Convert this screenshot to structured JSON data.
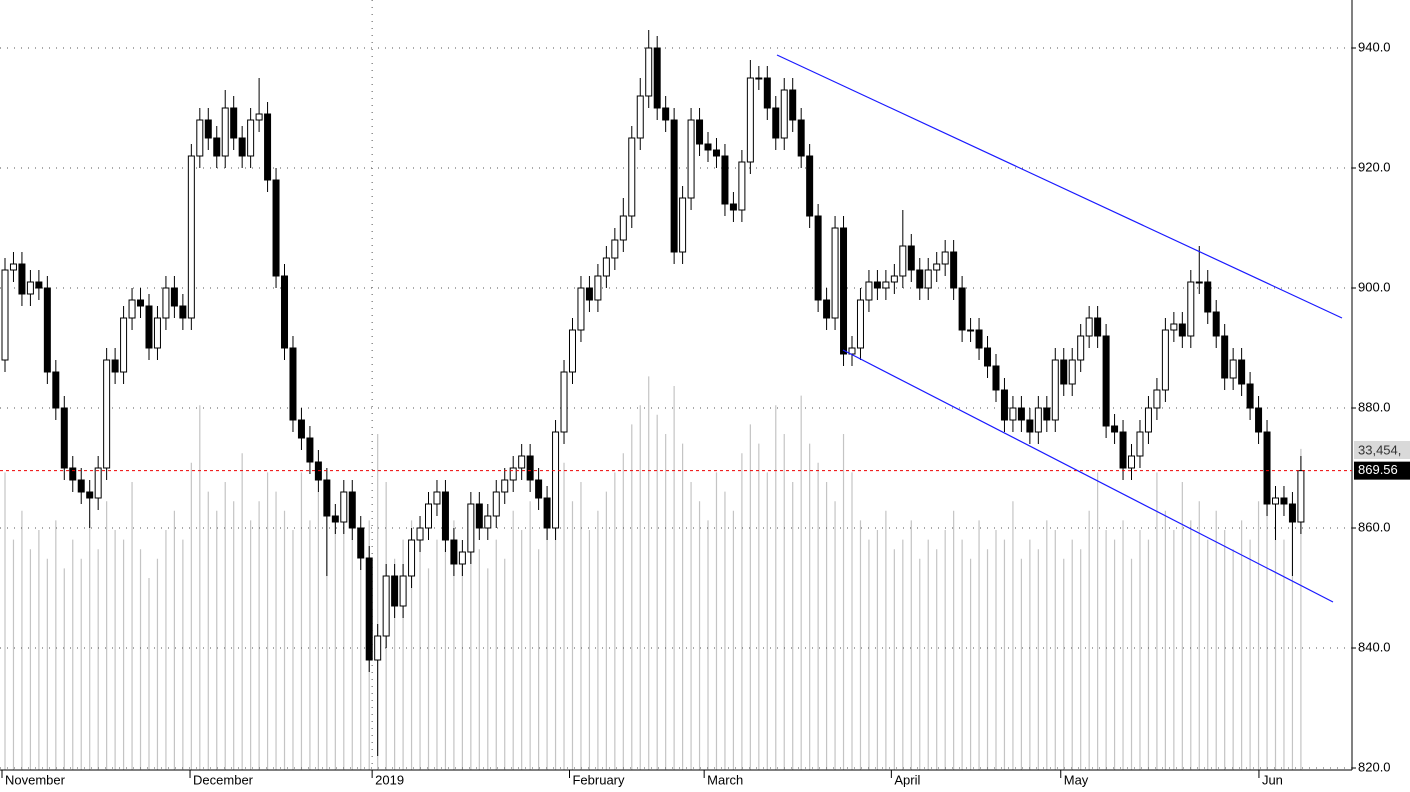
{
  "chart_data": {
    "type": "candlestick",
    "open": [
      888,
      903,
      904,
      899,
      901,
      900,
      886,
      880,
      870,
      868,
      866,
      865,
      870,
      888,
      886,
      895,
      898,
      897,
      890,
      895,
      900,
      897,
      895,
      922,
      928,
      925,
      922,
      930,
      925,
      922,
      928,
      929,
      918,
      902,
      890,
      878,
      875,
      871,
      868,
      862,
      861,
      866,
      860,
      855,
      838,
      842,
      852,
      847,
      852,
      858,
      860,
      864,
      866,
      858,
      854,
      856,
      864,
      860,
      862,
      866,
      868,
      870,
      872,
      868,
      865,
      860,
      876,
      886,
      893,
      900,
      898,
      902,
      905,
      908,
      912,
      925,
      932,
      940,
      930,
      928,
      906,
      915,
      928,
      924,
      923,
      922,
      914,
      913,
      921,
      935,
      935,
      930,
      925,
      933,
      928,
      922,
      912,
      898,
      895,
      910,
      889,
      890,
      898,
      901,
      900,
      901,
      902,
      907,
      903,
      900,
      903,
      904,
      906,
      900,
      893,
      893,
      890,
      887,
      883,
      878,
      880,
      878,
      876,
      880,
      878,
      888,
      884,
      888,
      892,
      895,
      892,
      877,
      876,
      870,
      872,
      876,
      880,
      883,
      893,
      894,
      892,
      901,
      901,
      896,
      892,
      885,
      888,
      884,
      880,
      876,
      864,
      865,
      864,
      861
    ],
    "high": [
      905,
      906,
      906,
      903,
      903,
      902,
      888,
      882,
      872,
      870,
      868,
      872,
      890,
      890,
      897,
      900,
      900,
      899,
      897,
      902,
      902,
      899,
      924,
      930,
      930,
      927,
      933,
      932,
      927,
      930,
      935,
      931,
      920,
      904,
      892,
      880,
      877,
      873,
      870,
      864,
      868,
      868,
      862,
      857,
      844,
      854,
      854,
      854,
      860,
      862,
      866,
      868,
      868,
      860,
      858,
      866,
      866,
      864,
      868,
      870,
      872,
      874,
      874,
      870,
      867,
      878,
      888,
      895,
      902,
      902,
      904,
      907,
      910,
      915,
      927,
      935,
      943,
      942,
      932,
      930,
      917,
      930,
      930,
      926,
      925,
      924,
      916,
      923,
      938,
      937,
      937,
      932,
      935,
      935,
      930,
      924,
      914,
      900,
      912,
      912,
      892,
      900,
      903,
      903,
      903,
      904,
      913,
      909,
      905,
      905,
      906,
      908,
      908,
      902,
      895,
      895,
      892,
      889,
      885,
      882,
      882,
      880,
      882,
      882,
      890,
      890,
      890,
      894,
      897,
      897,
      894,
      879,
      878,
      874,
      878,
      882,
      885,
      895,
      896,
      896,
      903,
      907,
      903,
      898,
      894,
      890,
      890,
      886,
      882,
      878,
      867,
      867,
      866,
      872
    ],
    "low": [
      886,
      901,
      897,
      897,
      898,
      884,
      878,
      868,
      866,
      864,
      860,
      863,
      868,
      884,
      884,
      893,
      895,
      888,
      888,
      893,
      895,
      893,
      893,
      920,
      923,
      920,
      920,
      923,
      920,
      920,
      926,
      916,
      900,
      888,
      876,
      873,
      869,
      866,
      852,
      859,
      859,
      858,
      853,
      836,
      822,
      840,
      845,
      845,
      850,
      856,
      858,
      862,
      856,
      852,
      852,
      854,
      858,
      858,
      860,
      864,
      866,
      868,
      866,
      863,
      858,
      858,
      874,
      884,
      891,
      896,
      896,
      900,
      903,
      906,
      910,
      923,
      930,
      928,
      926,
      904,
      904,
      913,
      922,
      921,
      920,
      912,
      911,
      911,
      919,
      933,
      928,
      923,
      923,
      926,
      920,
      910,
      896,
      893,
      893,
      887,
      887,
      888,
      896,
      898,
      898,
      899,
      900,
      901,
      898,
      898,
      901,
      902,
      898,
      891,
      891,
      888,
      885,
      881,
      876,
      876,
      876,
      874,
      874,
      876,
      876,
      882,
      882,
      886,
      890,
      890,
      875,
      874,
      868,
      868,
      870,
      874,
      878,
      881,
      891,
      890,
      890,
      899,
      894,
      890,
      883,
      883,
      882,
      878,
      874,
      862,
      858,
      862,
      852,
      859
    ],
    "close": [
      903,
      904,
      899,
      901,
      900,
      886,
      880,
      870,
      868,
      866,
      865,
      870,
      888,
      886,
      895,
      898,
      897,
      890,
      895,
      900,
      897,
      895,
      922,
      928,
      925,
      922,
      930,
      925,
      922,
      928,
      929,
      918,
      902,
      890,
      878,
      875,
      871,
      868,
      862,
      861,
      866,
      860,
      855,
      838,
      842,
      852,
      847,
      852,
      858,
      860,
      864,
      866,
      858,
      854,
      856,
      864,
      860,
      862,
      866,
      868,
      870,
      872,
      868,
      865,
      860,
      876,
      886,
      893,
      900,
      898,
      902,
      905,
      908,
      912,
      925,
      932,
      940,
      930,
      928,
      906,
      915,
      928,
      924,
      923,
      922,
      914,
      913,
      921,
      935,
      935,
      930,
      925,
      933,
      928,
      922,
      912,
      898,
      895,
      910,
      889,
      890,
      898,
      901,
      900,
      901,
      902,
      907,
      903,
      900,
      903,
      904,
      906,
      900,
      893,
      893,
      890,
      887,
      883,
      878,
      880,
      878,
      876,
      880,
      878,
      888,
      884,
      888,
      892,
      895,
      892,
      877,
      876,
      870,
      872,
      876,
      880,
      883,
      893,
      894,
      892,
      901,
      901,
      896,
      892,
      885,
      888,
      884,
      880,
      876,
      864,
      865,
      864,
      861,
      869.56
    ],
    "volume": [
      31000,
      24000,
      27000,
      23000,
      25000,
      22000,
      26000,
      21000,
      24000,
      22000,
      26000,
      23000,
      28000,
      25000,
      24000,
      30000,
      23000,
      20000,
      22000,
      25000,
      27000,
      24000,
      32000,
      38000,
      29000,
      27000,
      30000,
      28000,
      33000,
      26000,
      28000,
      31000,
      29000,
      27000,
      25000,
      31000,
      26000,
      29000,
      30000,
      27000,
      28000,
      24000,
      23000,
      26000,
      35000,
      30000,
      22000,
      24000,
      26000,
      25000,
      21000,
      24000,
      23000,
      26000,
      22000,
      25000,
      23000,
      21000,
      24000,
      22000,
      27000,
      25000,
      28000,
      23000,
      26000,
      30000,
      32000,
      28000,
      30000,
      25000,
      27000,
      29000,
      31000,
      33000,
      36000,
      38000,
      41000,
      37000,
      35000,
      40000,
      34000,
      30000,
      28000,
      26000,
      31000,
      29000,
      27000,
      33000,
      36000,
      34000,
      31000,
      38000,
      35000,
      30000,
      39000,
      34000,
      32000,
      30000,
      28000,
      35000,
      31000,
      26000,
      24000,
      25000,
      27000,
      23000,
      24000,
      26000,
      22000,
      24000,
      23000,
      25000,
      27000,
      24000,
      22000,
      26000,
      23000,
      25000,
      24000,
      28000,
      22000,
      24000,
      23000,
      26000,
      25000,
      22000,
      24000,
      23000,
      27000,
      31000,
      25000,
      24000,
      26000,
      22000,
      25000,
      24000,
      31000,
      27000,
      25000,
      30000,
      26000,
      28000,
      24000,
      27000,
      25000,
      23000,
      26000,
      24000,
      28000,
      30000,
      26000,
      24000,
      28000,
      33454
    ],
    "volume_label": "33,454,",
    "last_price": {
      "value": 869.56,
      "label": "869.56"
    },
    "xticks": [
      {
        "value": 0,
        "label": "November"
      },
      {
        "value": 22.2,
        "label": "December"
      },
      {
        "value": 43.7,
        "label": "2019"
      },
      {
        "value": 67,
        "label": "February"
      },
      {
        "value": 82.9,
        "label": "March"
      },
      {
        "value": 105,
        "label": "April"
      },
      {
        "value": 125,
        "label": "May"
      },
      {
        "value": 148.4,
        "label": "Jun"
      }
    ],
    "ylim": [
      820,
      948
    ],
    "yticks": [
      {
        "value": 820,
        "label": "820.0"
      },
      {
        "value": 840,
        "label": "840.0"
      },
      {
        "value": 860,
        "label": "860.0"
      },
      {
        "value": 880,
        "label": "880.0"
      },
      {
        "value": 900,
        "label": "900.0"
      },
      {
        "value": 920,
        "label": "920.0"
      },
      {
        "value": 940,
        "label": "940.0"
      }
    ],
    "grid": true
  }
}
